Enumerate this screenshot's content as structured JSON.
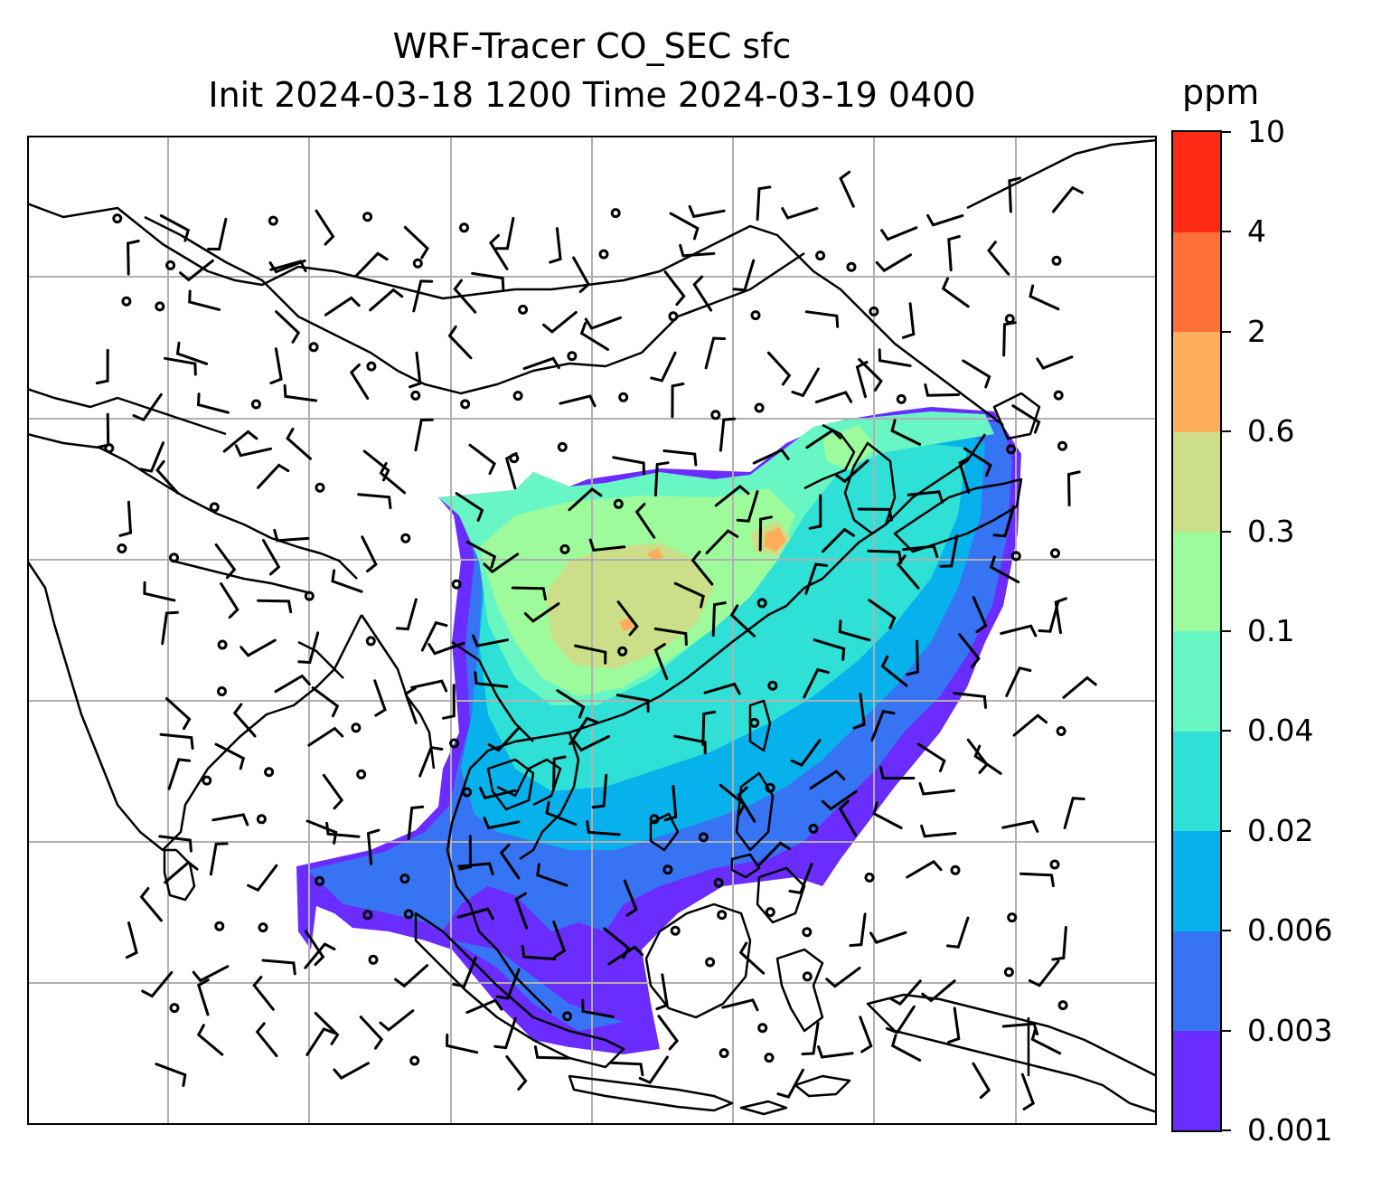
{
  "title": {
    "line1": "WRF-Tracer CO_SEC sfc",
    "line2": "Init 2024-03-18 1200 Time 2024-03-19 0400"
  },
  "colorbar": {
    "unit": "ppm",
    "levels": [
      "0.001",
      "0.003",
      "0.006",
      "0.02",
      "0.04",
      "0.1",
      "0.3",
      "0.6",
      "2",
      "4",
      "10"
    ],
    "colors": [
      "#6a2cff",
      "#3774f3",
      "#07b2ec",
      "#2ee0d6",
      "#68f7c4",
      "#9efb9c",
      "#ccdf88",
      "#ffae5c",
      "#ff6f38",
      "#ff2b17"
    ]
  },
  "map": {
    "projection": "lat-lon",
    "extent_lon": [
      70,
      150
    ],
    "extent_lat": [
      -15,
      55
    ],
    "gridlines": "on",
    "grid_lon": [
      80,
      90,
      100,
      110,
      120,
      130,
      140
    ],
    "grid_lat": [
      -5,
      5,
      15,
      25,
      35,
      45
    ],
    "coastline_color": "#000000",
    "barb_color": "#000000",
    "gridline_color": "#b0b0b0"
  }
}
